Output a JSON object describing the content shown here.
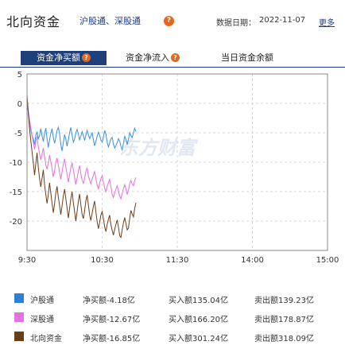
{
  "header": {
    "title": "北向资金",
    "subtitle": "沪股通、深股通",
    "help_glyph": "?",
    "date_label": "数据日期：",
    "date_value": "2022-11-07",
    "more_label": "更多"
  },
  "tabs": [
    {
      "label": "资金净买额",
      "active": true
    },
    {
      "label": "资金净流入",
      "active": false
    },
    {
      "label": "当日资金余额",
      "active": false
    }
  ],
  "watermark": "东方财富",
  "chart_data": {
    "type": "line",
    "x_ticks": [
      "9:30",
      "10:30",
      "11:30",
      "14:00",
      "15:00"
    ],
    "y_ticks": [
      5,
      0,
      -5,
      -10,
      -15,
      -20
    ],
    "ylim": [
      -25,
      5
    ],
    "grid": true,
    "series": [
      {
        "name": "沪股通",
        "color": "#3a8fe0",
        "values": [
          0.5,
          -1.5,
          -3,
          -4.5,
          -5.5,
          -6,
          -7,
          -5.5,
          -4.8,
          -6,
          -5.5,
          -4.3,
          -5.5,
          -6.5,
          -5.2,
          -4.2,
          -6,
          -7.5,
          -6.2,
          -5.1,
          -4.3,
          -5.8,
          -6.8,
          -5.8,
          -4.6,
          -4.1,
          -5.2,
          -7,
          -8.1,
          -6.6,
          -5.3,
          -6.1,
          -7.3,
          -6.2,
          -5,
          -4.1,
          -5.4,
          -6.6,
          -6.1,
          -5,
          -4.4,
          -5.2,
          -6.2,
          -5.6,
          -4.8,
          -5.5,
          -6.3,
          -5.4,
          -4.6,
          -5.3,
          -6,
          -5.5,
          -5,
          -6.2,
          -7.2,
          -6.5,
          -5.6,
          -4.9,
          -5.4,
          -6.2,
          -6.6,
          -5.8,
          -4.6,
          -5.2,
          -6.6,
          -7.4,
          -6.8,
          -6,
          -5.8,
          -6.9,
          -7.6,
          -7.2,
          -6.7,
          -6,
          -6.4,
          -7.3,
          -7.9,
          -6.8,
          -5.6,
          -6.1,
          -7,
          -6.1,
          -5,
          -5.5,
          -5.8,
          -5,
          -4.2,
          -4.8
        ]
      },
      {
        "name": "深股通",
        "color": "#e070e0",
        "values": [
          1,
          -1.2,
          -2.7,
          -4.1,
          -5.4,
          -6.6,
          -7.8,
          -6.6,
          -5.6,
          -7.4,
          -8.6,
          -9.6,
          -8.6,
          -7.6,
          -9,
          -10.4,
          -11.2,
          -10.2,
          -8.8,
          -9.9,
          -11.1,
          -12.5,
          -11.4,
          -10,
          -9.3,
          -10.5,
          -11.8,
          -12.9,
          -11.6,
          -10.4,
          -9.4,
          -10.8,
          -12.1,
          -13.4,
          -12.2,
          -11,
          -10.1,
          -11.3,
          -12.6,
          -13.8,
          -12.7,
          -11.5,
          -10.6,
          -11.9,
          -13.1,
          -13.6,
          -12.7,
          -11.6,
          -11,
          -12.3,
          -13.1,
          -13.7,
          -12.9,
          -12.2,
          -11.6,
          -12.7,
          -13.9,
          -14.6,
          -13.6,
          -12.8,
          -12.3,
          -13.4,
          -14.4,
          -15,
          -14.1,
          -13.5,
          -12.9,
          -14.1,
          -15.5,
          -16,
          -15.2,
          -14.6,
          -14,
          -14.9,
          -15.8,
          -16.2,
          -15.3,
          -14.5,
          -13.8,
          -14.6,
          -15.5,
          -14.7,
          -13.6,
          -13.1,
          -13.7,
          -14,
          -13.1,
          -12.6
        ]
      },
      {
        "name": "北向资金",
        "color": "#6b3e1a",
        "values": [
          1.5,
          -1.7,
          -4.2,
          -6.3,
          -8.2,
          -10.1,
          -12.2,
          -10.3,
          -8.4,
          -10.9,
          -12.8,
          -14.2,
          -12.8,
          -11.3,
          -13.7,
          -15.5,
          -17,
          -15.5,
          -13.5,
          -15.2,
          -17,
          -18.6,
          -17,
          -15.2,
          -14.1,
          -16,
          -17.4,
          -18.9,
          -17.4,
          -15.7,
          -14.6,
          -16.2,
          -17.8,
          -19.5,
          -17.9,
          -16.2,
          -15,
          -16.9,
          -18.4,
          -20,
          -18.4,
          -16.7,
          -15.4,
          -17.2,
          -18.9,
          -19.6,
          -18.2,
          -16.6,
          -15.6,
          -17.3,
          -19,
          -19.9,
          -18.7,
          -17.5,
          -16.6,
          -18.4,
          -20.1,
          -21.3,
          -20.3,
          -19,
          -18.4,
          -19.6,
          -21,
          -21.8,
          -20.6,
          -19.7,
          -19,
          -20.6,
          -21.6,
          -22.4,
          -21.4,
          -20.6,
          -19.8,
          -21,
          -22.5,
          -22.8,
          -21.5,
          -20.3,
          -19.4,
          -20.4,
          -21.5,
          -21.2,
          -19.5,
          -18.2,
          -18.8,
          -19.3,
          -17.9,
          -16.9
        ]
      }
    ]
  },
  "legend": [
    {
      "name": "沪股通",
      "color": "#2f7fd6",
      "net": "净买额-4.18亿",
      "buy": "买入额135.04亿",
      "sell": "卖出额139.23亿"
    },
    {
      "name": "深股通",
      "color": "#e274e2",
      "net": "净买额-12.67亿",
      "buy": "买入额166.20亿",
      "sell": "卖出额178.87亿"
    },
    {
      "name": "北向资金",
      "color": "#6b3e1a",
      "net": "净买额-16.85亿",
      "buy": "买入额301.24亿",
      "sell": "卖出额318.09亿"
    }
  ]
}
